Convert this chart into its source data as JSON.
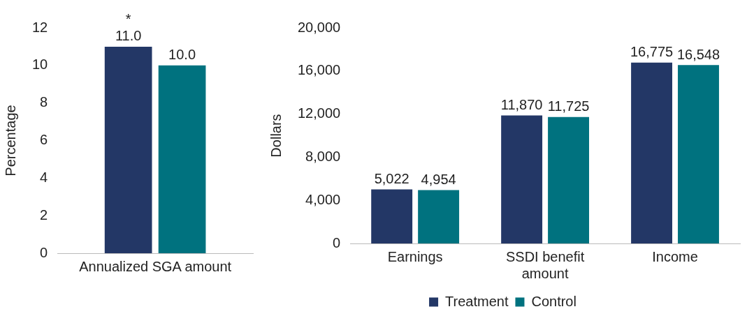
{
  "chart_data": [
    {
      "type": "bar",
      "ylabel": "Percentage",
      "categories": [
        "Annualized SGA amount"
      ],
      "ylim": [
        0,
        12
      ],
      "yticks": [
        0,
        2,
        4,
        6,
        8,
        10,
        12
      ],
      "grid": false,
      "legend": false,
      "series": [
        {
          "color": "#233766",
          "values": [
            11
          ],
          "value_labels": [
            "11.0"
          ]
        },
        {
          "color": "#00727f",
          "values": [
            10
          ],
          "value_labels": [
            "10.0"
          ]
        }
      ],
      "annotations": [
        {
          "text": "*",
          "x": "Annualized SGA amount",
          "y": 11
        }
      ]
    },
    {
      "type": "bar",
      "ylabel": "Dollars",
      "categories": [
        "Earnings",
        "SSDI benefit amount",
        "Income"
      ],
      "ylim": [
        0,
        20000
      ],
      "yticks": [
        0,
        {
          "value": 4000,
          "label": "4,000"
        },
        {
          "value": 8000,
          "label": "8,000"
        },
        {
          "value": 12000,
          "label": "12,000"
        },
        {
          "value": 16000,
          "label": "16,000"
        },
        {
          "value": 20000,
          "label": "20,000"
        }
      ],
      "grid": false,
      "legend": "bottom",
      "series": [
        {
          "name": "Treatment",
          "color": "#233766",
          "values": [
            5022,
            11870,
            16775
          ],
          "value_labels": [
            "5,022",
            "11,870",
            "16,775"
          ]
        },
        {
          "name": "Control",
          "color": "#00727f",
          "values": [
            4954,
            11725,
            16548
          ],
          "value_labels": [
            "4,954",
            "11,725",
            "16,548"
          ]
        }
      ]
    }
  ]
}
